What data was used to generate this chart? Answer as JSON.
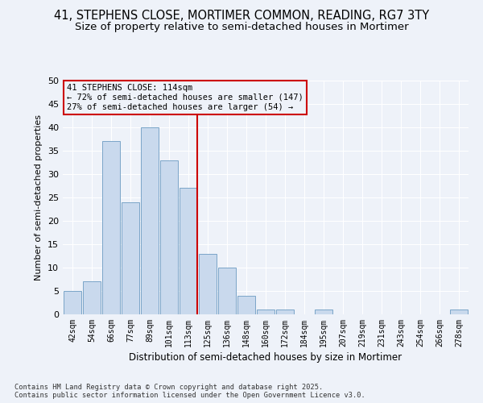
{
  "title_line1": "41, STEPHENS CLOSE, MORTIMER COMMON, READING, RG7 3TY",
  "title_line2": "Size of property relative to semi-detached houses in Mortimer",
  "xlabel": "Distribution of semi-detached houses by size in Mortimer",
  "ylabel": "Number of semi-detached properties",
  "categories": [
    "42sqm",
    "54sqm",
    "66sqm",
    "77sqm",
    "89sqm",
    "101sqm",
    "113sqm",
    "125sqm",
    "136sqm",
    "148sqm",
    "160sqm",
    "172sqm",
    "184sqm",
    "195sqm",
    "207sqm",
    "219sqm",
    "231sqm",
    "243sqm",
    "254sqm",
    "266sqm",
    "278sqm"
  ],
  "values": [
    5,
    7,
    37,
    24,
    40,
    33,
    27,
    13,
    10,
    4,
    1,
    1,
    0,
    1,
    0,
    0,
    0,
    0,
    0,
    0,
    1
  ],
  "bar_color": "#c9d9ed",
  "bar_edge_color": "#7aa5c8",
  "property_line_idx": 6,
  "annotation_box_text": "41 STEPHENS CLOSE: 114sqm\n← 72% of semi-detached houses are smaller (147)\n27% of semi-detached houses are larger (54) →",
  "ylim": [
    0,
    50
  ],
  "yticks": [
    0,
    5,
    10,
    15,
    20,
    25,
    30,
    35,
    40,
    45,
    50
  ],
  "background_color": "#eef2f9",
  "grid_color": "#ffffff",
  "footer_line1": "Contains HM Land Registry data © Crown copyright and database right 2025.",
  "footer_line2": "Contains public sector information licensed under the Open Government Licence v3.0.",
  "red_line_color": "#cc0000",
  "annotation_box_edge": "#cc0000",
  "title_fontsize": 10.5,
  "subtitle_fontsize": 9.5
}
